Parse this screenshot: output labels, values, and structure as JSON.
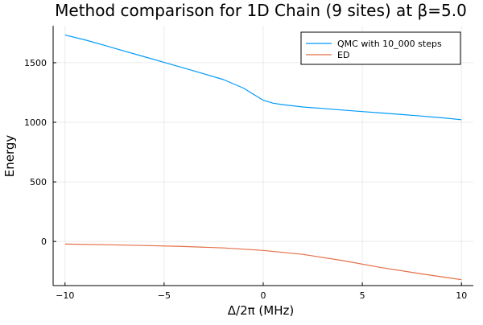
{
  "chart_data": {
    "type": "line",
    "title": "Method comparison for 1D Chain (9 sites) at β=5.0",
    "xlabel": "Δ/2π (MHz)",
    "ylabel": "Energy",
    "xlim": [
      -10.6,
      10.6
    ],
    "ylim": [
      -370,
      1810
    ],
    "xticks": [
      -10,
      -5,
      0,
      5,
      10
    ],
    "xtick_labels": [
      "−10",
      "−5",
      "0",
      "5",
      "10"
    ],
    "yticks": [
      0,
      500,
      1000,
      1500
    ],
    "ytick_labels": [
      "0",
      "500",
      "1000",
      "1500"
    ],
    "grid": true,
    "legend_position": "top-right",
    "series": [
      {
        "name": "QMC with 10_000 steps",
        "color": "#009AFA",
        "x": [
          -10,
          -9,
          -8,
          -7,
          -6,
          -5,
          -4,
          -3,
          -2,
          -1,
          0,
          0.5,
          1,
          2,
          3,
          4,
          5,
          6,
          7,
          8,
          9,
          10
        ],
        "y": [
          1732,
          1692,
          1645,
          1597,
          1550,
          1502,
          1455,
          1407,
          1358,
          1287,
          1185,
          1160,
          1148,
          1128,
          1116,
          1103,
          1090,
          1078,
          1065,
          1052,
          1038,
          1022
        ]
      },
      {
        "name": "ED",
        "color": "#E36F47",
        "x": [
          -10,
          -8,
          -6,
          -4,
          -2,
          0,
          2,
          4,
          6,
          8,
          10
        ],
        "y": [
          -22,
          -27,
          -34,
          -42,
          -54,
          -75,
          -108,
          -160,
          -220,
          -272,
          -320
        ]
      }
    ]
  }
}
